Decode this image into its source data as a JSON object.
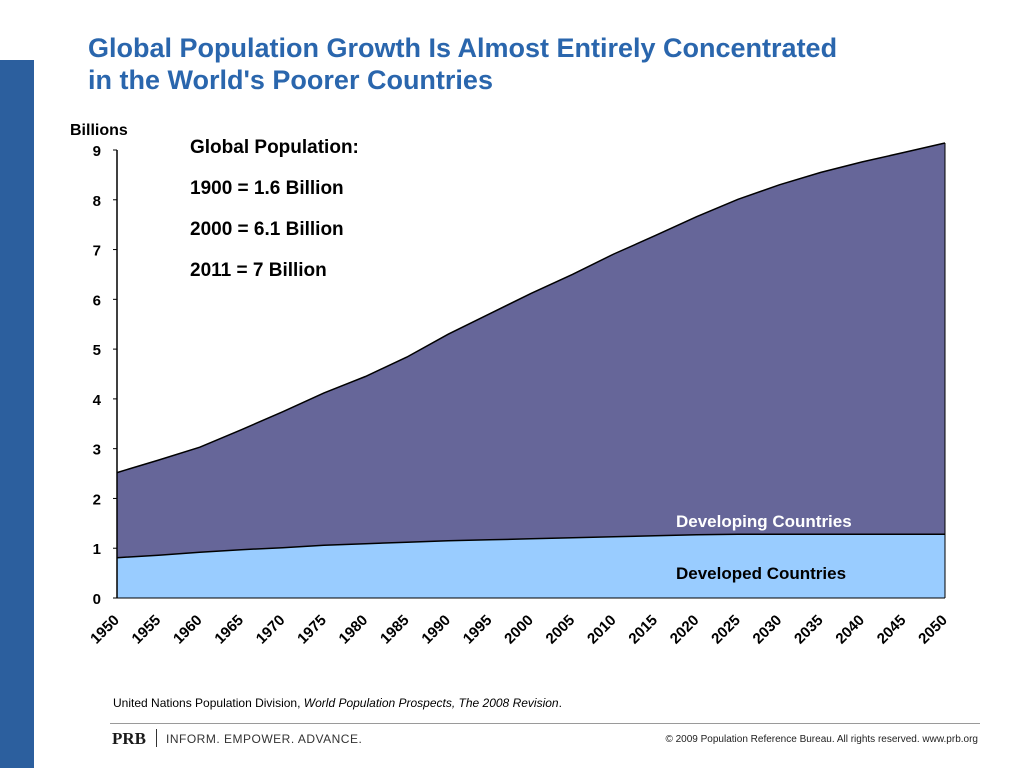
{
  "title_lines": [
    "Global Population Growth Is Almost Entirely Concentrated",
    "in the World's Poorer Countries"
  ],
  "notes": [
    "Global Population:",
    "1900 = 1.6 Billion",
    "2000 = 6.1 Billion",
    "2011 = 7 Billion"
  ],
  "source": {
    "prefix": "United Nations Population Division, ",
    "title": "World Population Prospects, The 2008 Revision",
    "suffix": "."
  },
  "footer": {
    "brand": "PRB",
    "tagline": "INFORM. EMPOWER. ADVANCE.",
    "copyright": "© 2009 Population Reference Bureau. All rights reserved. www.prb.org"
  },
  "chart_data": {
    "type": "area",
    "stacked": true,
    "ylabel": "Billions",
    "ylim": [
      0,
      9
    ],
    "yticks": [
      0,
      1,
      2,
      3,
      4,
      5,
      6,
      7,
      8,
      9
    ],
    "x": [
      1950,
      1955,
      1960,
      1965,
      1970,
      1975,
      1980,
      1985,
      1990,
      1995,
      2000,
      2005,
      2010,
      2015,
      2020,
      2025,
      2030,
      2035,
      2040,
      2045,
      2050
    ],
    "xticks": [
      "1950",
      "1955",
      "1960",
      "1965",
      "1970",
      "1975",
      "1980",
      "1985",
      "1990",
      "1995",
      "2000",
      "2005",
      "2010",
      "2015",
      "2020",
      "2025",
      "2030",
      "2035",
      "2040",
      "2045",
      "2050"
    ],
    "series": [
      {
        "name": "Developed Countries",
        "color": "#99ccff",
        "values": [
          0.81,
          0.86,
          0.92,
          0.97,
          1.01,
          1.06,
          1.09,
          1.12,
          1.15,
          1.17,
          1.19,
          1.21,
          1.23,
          1.25,
          1.27,
          1.28,
          1.28,
          1.28,
          1.28,
          1.28,
          1.28
        ]
      },
      {
        "name": "Developing Countries",
        "color": "#666699",
        "values": [
          1.71,
          1.91,
          2.11,
          2.41,
          2.73,
          3.06,
          3.36,
          3.72,
          4.15,
          4.54,
          4.93,
          5.29,
          5.68,
          6.03,
          6.39,
          6.73,
          7.02,
          7.27,
          7.48,
          7.67,
          7.86
        ]
      }
    ],
    "legend_placement": "inside, on each area"
  }
}
